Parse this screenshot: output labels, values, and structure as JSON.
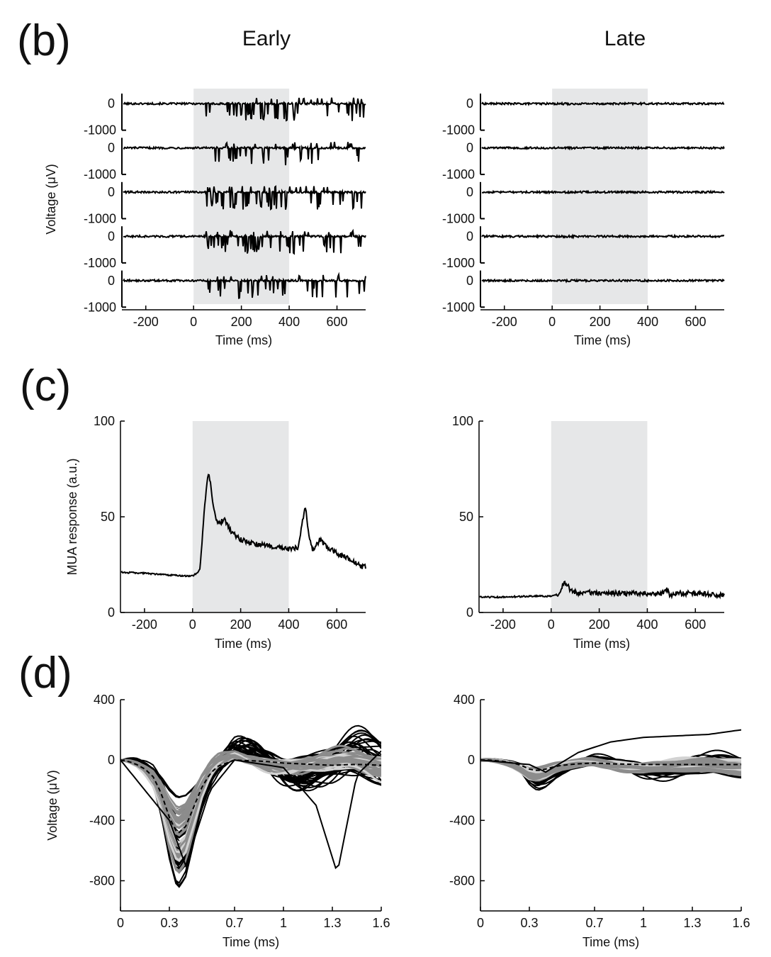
{
  "figure": {
    "panel_b_label": "(b)",
    "panel_c_label": "(c)",
    "panel_d_label": "(d)",
    "col_early_title": "Early",
    "col_late_title": "Late",
    "colors": {
      "trace": "#000000",
      "stimulus_shade": "#e6e7e8",
      "waveform_gray": "#8c8c8c",
      "waveform_light": "#d2d2d2"
    }
  },
  "chart_data": [
    {
      "id": "b-early",
      "type": "line",
      "title": "",
      "xlabel": "Time (ms)",
      "ylabel": "Voltage (μV)",
      "xlim": [
        -300,
        720
      ],
      "xticks": [
        -200,
        0,
        200,
        400,
        600
      ],
      "channel_yticks": [
        0,
        -1000
      ],
      "channels": 5,
      "channel_ylim": [
        -1100,
        300
      ],
      "stimulus_window_ms": [
        0,
        400
      ],
      "spikes_in_window": true,
      "spike_amplitude_uv": 600,
      "series": [
        {
          "channel": 1,
          "spike_density": "high"
        },
        {
          "channel": 2,
          "spike_density": "medium"
        },
        {
          "channel": 3,
          "spike_density": "high"
        },
        {
          "channel": 4,
          "spike_density": "high"
        },
        {
          "channel": 5,
          "spike_density": "medium"
        }
      ]
    },
    {
      "id": "b-late",
      "type": "line",
      "title": "",
      "xlabel": "Time (ms)",
      "ylabel": "",
      "xlim": [
        -300,
        720
      ],
      "xticks": [
        -200,
        0,
        200,
        400,
        600
      ],
      "channel_yticks": [
        0,
        -1000
      ],
      "channels": 5,
      "channel_ylim": [
        -1100,
        300
      ],
      "stimulus_window_ms": [
        0,
        400
      ],
      "spikes_in_window": false,
      "spike_amplitude_uv": 40,
      "series": [
        {
          "channel": 1,
          "spike_density": "none"
        },
        {
          "channel": 2,
          "spike_density": "none"
        },
        {
          "channel": 3,
          "spike_density": "none"
        },
        {
          "channel": 4,
          "spike_density": "none"
        },
        {
          "channel": 5,
          "spike_density": "none"
        }
      ]
    },
    {
      "id": "c-early",
      "type": "line",
      "title": "",
      "xlabel": "Time (ms)",
      "ylabel": "MUA response (a.u.)",
      "xlim": [
        -300,
        720
      ],
      "ylim": [
        0,
        100
      ],
      "xticks": [
        -200,
        0,
        200,
        400,
        600
      ],
      "yticks": [
        0,
        50,
        100
      ],
      "stimulus_window_ms": [
        0,
        400
      ],
      "series": [
        {
          "x": [
            -300,
            -200,
            -100,
            0,
            30,
            50,
            65,
            75,
            90,
            110,
            130,
            160,
            200,
            250,
            300,
            350,
            400,
            440,
            460,
            470,
            485,
            500,
            530,
            560,
            600,
            650,
            700
          ],
          "y": [
            21,
            20.5,
            19.5,
            19,
            22,
            55,
            73,
            67,
            52,
            46,
            49,
            42,
            38,
            36,
            35,
            34,
            33,
            34,
            50,
            55,
            38,
            33,
            38,
            34,
            31,
            28,
            24
          ]
        }
      ]
    },
    {
      "id": "c-late",
      "type": "line",
      "title": "",
      "xlabel": "Time (ms)",
      "ylabel": "",
      "xlim": [
        -300,
        720
      ],
      "ylim": [
        0,
        100
      ],
      "xticks": [
        -200,
        0,
        200,
        400,
        600
      ],
      "yticks": [
        0,
        50,
        100
      ],
      "stimulus_window_ms": [
        0,
        400
      ],
      "series": [
        {
          "x": [
            -300,
            -200,
            -100,
            0,
            30,
            50,
            60,
            80,
            110,
            150,
            200,
            300,
            400,
            450,
            470,
            480,
            495,
            520,
            600,
            650,
            720
          ],
          "y": [
            8,
            8,
            8.5,
            8.5,
            9.5,
            15,
            15.5,
            12,
            10,
            10.5,
            10,
            10,
            10,
            9.5,
            11,
            12,
            9,
            10,
            10,
            9.5,
            9
          ]
        }
      ]
    },
    {
      "id": "d-early",
      "type": "line",
      "title": "",
      "xlabel": "Time (ms)",
      "ylabel": "Voltage (μV)",
      "xlim": [
        0,
        1.6
      ],
      "ylim": [
        -1000,
        400
      ],
      "xticks": [
        0,
        0.3,
        0.7,
        1.0,
        1.3,
        1.6
      ],
      "yticks": [
        400,
        0,
        -400,
        -800
      ],
      "mean_waveform": {
        "x": [
          0,
          0.05,
          0.1,
          0.15,
          0.2,
          0.25,
          0.3,
          0.35,
          0.4,
          0.45,
          0.5,
          0.55,
          0.6,
          0.7,
          0.8,
          0.9,
          1.0,
          1.1,
          1.2,
          1.3,
          1.4,
          1.5,
          1.6
        ],
        "y": [
          0,
          -10,
          -30,
          -60,
          -110,
          -220,
          -380,
          -490,
          -440,
          -310,
          -180,
          -90,
          -40,
          0,
          -5,
          -10,
          -20,
          -25,
          -30,
          -35,
          -30,
          -30,
          -35
        ]
      },
      "individual_trace_count": 40,
      "outlier_trace": {
        "x": [
          0,
          0.3,
          0.4,
          0.55,
          0.7,
          1.0,
          1.2,
          1.33,
          1.45,
          1.6
        ],
        "y": [
          0,
          -400,
          -700,
          -200,
          0,
          -50,
          -300,
          -750,
          -100,
          60
        ]
      }
    },
    {
      "id": "d-late",
      "type": "line",
      "title": "",
      "xlabel": "Time (ms)",
      "ylabel": "",
      "xlim": [
        0,
        1.6
      ],
      "ylim": [
        -1000,
        400
      ],
      "xticks": [
        0,
        0.3,
        0.7,
        1.0,
        1.3,
        1.6
      ],
      "yticks": [
        400,
        0,
        -400,
        -800
      ],
      "mean_waveform": {
        "x": [
          0,
          0.05,
          0.1,
          0.15,
          0.2,
          0.25,
          0.3,
          0.35,
          0.4,
          0.45,
          0.5,
          0.6,
          0.7,
          0.8,
          1.0,
          1.2,
          1.4,
          1.6
        ],
        "y": [
          0,
          0,
          -5,
          -10,
          -20,
          -35,
          -60,
          -70,
          -60,
          -45,
          -35,
          -25,
          -20,
          -25,
          -30,
          -30,
          -30,
          -30
        ]
      },
      "individual_trace_count": 30,
      "outlier_trace": {
        "x": [
          0,
          0.3,
          0.4,
          0.6,
          0.8,
          1.0,
          1.2,
          1.4,
          1.6
        ],
        "y": [
          0,
          -30,
          -80,
          50,
          120,
          150,
          160,
          170,
          200
        ]
      }
    }
  ]
}
